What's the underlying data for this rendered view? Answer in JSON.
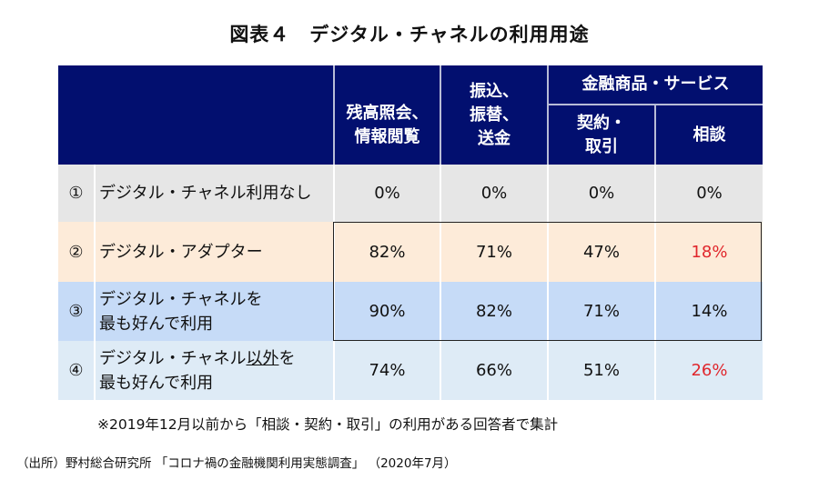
{
  "title": "図表４　デジタル・チャネルの利用用途",
  "header": {
    "col1": "残高照会、情報閲覧",
    "col2": "振込、振替、送金",
    "group": "金融商品・サービス",
    "col3": "契約・取引",
    "col4": "相談"
  },
  "rows": [
    {
      "num": "①",
      "label": "デジタル・チャネル利用なし",
      "values": [
        "0%",
        "0%",
        "0%",
        "0%"
      ]
    },
    {
      "num": "②",
      "label": "デジタル・アダプター",
      "values": [
        "82%",
        "71%",
        "47%",
        "18%"
      ]
    },
    {
      "num": "③",
      "label": "デジタル・チャネルを最も好んで利用",
      "values": [
        "90%",
        "82%",
        "71%",
        "14%"
      ]
    },
    {
      "num": "④",
      "label_a": "デジタル・チャネル",
      "label_u": "以外",
      "label_b": "を最も好んで利用",
      "values": [
        "74%",
        "66%",
        "51%",
        "26%"
      ]
    }
  ],
  "colors": {
    "header": "#020f6f",
    "row1": "#e6e6e6",
    "row2": "#fdebd9",
    "row3": "#c6dbf7",
    "row4": "#deebf6",
    "highlight": "#e0262c"
  },
  "note": "※2019年12月以前から「相談・契約・取引」の利用がある回答者で集計",
  "source": "（出所）野村総合研究所 「コロナ禍の金融機関利用実態調査」 （2020年7月）"
}
